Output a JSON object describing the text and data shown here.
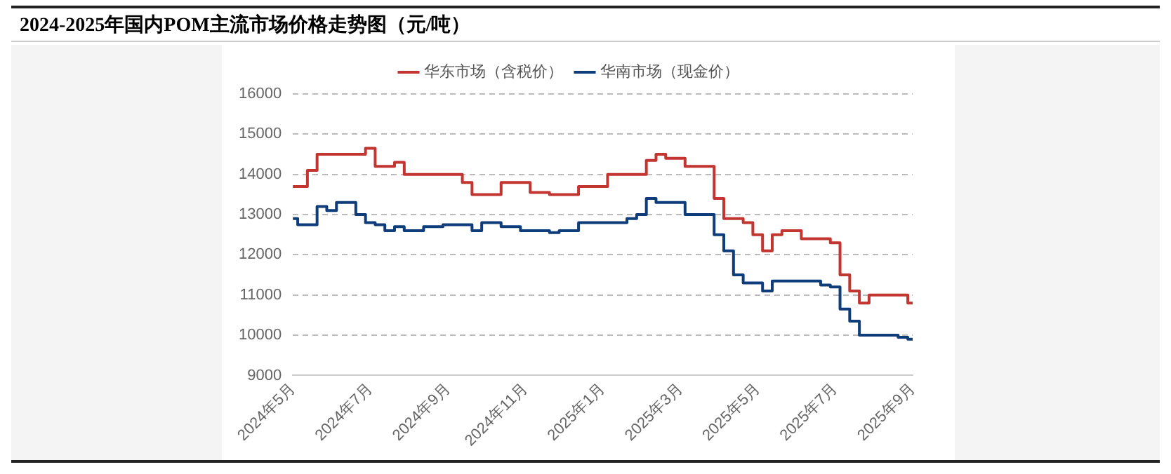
{
  "chart_data": {
    "type": "step",
    "title": "2024-2025年国内POM主流市场价格走势图（元/吨）",
    "categories": [
      "2024年5月",
      null,
      null,
      null,
      null,
      null,
      null,
      null,
      "2024年7月",
      null,
      null,
      null,
      null,
      null,
      null,
      null,
      "2024年9月",
      null,
      null,
      null,
      null,
      null,
      null,
      null,
      "2024年11月",
      null,
      null,
      null,
      null,
      null,
      null,
      null,
      "2025年1月",
      null,
      null,
      null,
      null,
      null,
      null,
      null,
      "2025年3月",
      null,
      null,
      null,
      null,
      null,
      null,
      null,
      "2025年5月",
      null,
      null,
      null,
      null,
      null,
      null,
      null,
      "2025年7月",
      null,
      null,
      null,
      null,
      null,
      null,
      null,
      "2025年9月"
    ],
    "series": [
      {
        "name": "华东市场（含税价）",
        "color": "#c23531",
        "values": [
          13700,
          13700,
          14100,
          14500,
          14500,
          14500,
          14500,
          14500,
          14650,
          14200,
          14200,
          14300,
          14000,
          14000,
          14000,
          14000,
          14000,
          14000,
          13800,
          13500,
          13500,
          13500,
          13800,
          13800,
          13800,
          13550,
          13550,
          13500,
          13500,
          13500,
          13700,
          13700,
          13700,
          14000,
          14000,
          14000,
          14000,
          14350,
          14500,
          14400,
          14400,
          14200,
          14200,
          14200,
          13400,
          12900,
          12900,
          12800,
          12500,
          12100,
          12500,
          12600,
          12600,
          12400,
          12400,
          12400,
          12300,
          11500,
          11100,
          10800,
          11000,
          11000,
          11000,
          11000,
          10800
        ]
      },
      {
        "name": "华南市场（现金价）",
        "color": "#0e3d7a",
        "values": [
          12900,
          12750,
          12750,
          13200,
          13100,
          13300,
          13300,
          13000,
          12800,
          12750,
          12600,
          12700,
          12600,
          12600,
          12700,
          12700,
          12750,
          12750,
          12750,
          12600,
          12800,
          12800,
          12700,
          12700,
          12600,
          12600,
          12600,
          12550,
          12600,
          12600,
          12800,
          12800,
          12800,
          12800,
          12800,
          12900,
          13000,
          13400,
          13300,
          13300,
          13300,
          13000,
          13000,
          13000,
          12500,
          12100,
          11500,
          11300,
          11300,
          11100,
          11350,
          11350,
          11350,
          11350,
          11350,
          11250,
          11200,
          10650,
          10350,
          10000,
          10000,
          10000,
          10000,
          9950,
          9900
        ]
      }
    ],
    "ylim": [
      9000,
      16000
    ],
    "yticks": [
      9000,
      10000,
      11000,
      12000,
      13000,
      14000,
      15000,
      16000
    ],
    "grid": "y",
    "legend": "top",
    "marker": "none",
    "line_style": "solid"
  }
}
